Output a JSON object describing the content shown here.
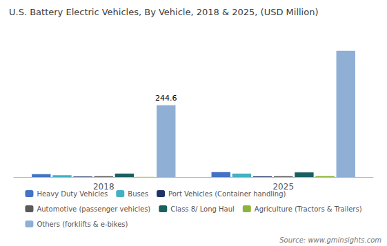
{
  "chart_data": {
    "type": "bar",
    "title": "U.S. Battery Electric Vehicles, By Vehicle, 2018 & 2025, (USD Million)",
    "categories": [
      "2018",
      "2025"
    ],
    "series": [
      {
        "name": "Heavy Duty Vehicles",
        "color": "#4472c4",
        "values": [
          10.0,
          17.0
        ]
      },
      {
        "name": "Buses",
        "color": "#44b0c0",
        "values": [
          6.5,
          12.0
        ]
      },
      {
        "name": "Port Vehicles (Container handling)",
        "color": "#1f3366",
        "values": [
          2.0,
          2.5
        ]
      },
      {
        "name": "Automotive (passenger vehicles)",
        "color": "#5a5a5a",
        "values": [
          3.0,
          3.0
        ]
      },
      {
        "name": "Class 8/ Long Haul",
        "color": "#1a6060",
        "values": [
          12.0,
          16.0
        ]
      },
      {
        "name": "Agriculture (Tractors & Trailers)",
        "color": "#8db33a",
        "values": [
          0.5,
          3.5
        ]
      },
      {
        "name": "Others (forklifts & e-bikes)",
        "color": "#8fafd4",
        "values": [
          244.6,
          430.0
        ]
      }
    ],
    "annotations": [
      {
        "text": "244.6",
        "series": "Others (forklifts & e-bikes)",
        "x": "2018"
      }
    ],
    "source": "Source: www.gminsights.com",
    "ylim": [
      0,
      500
    ],
    "grid": false,
    "legend": "bottom",
    "tick_labels": "x"
  }
}
